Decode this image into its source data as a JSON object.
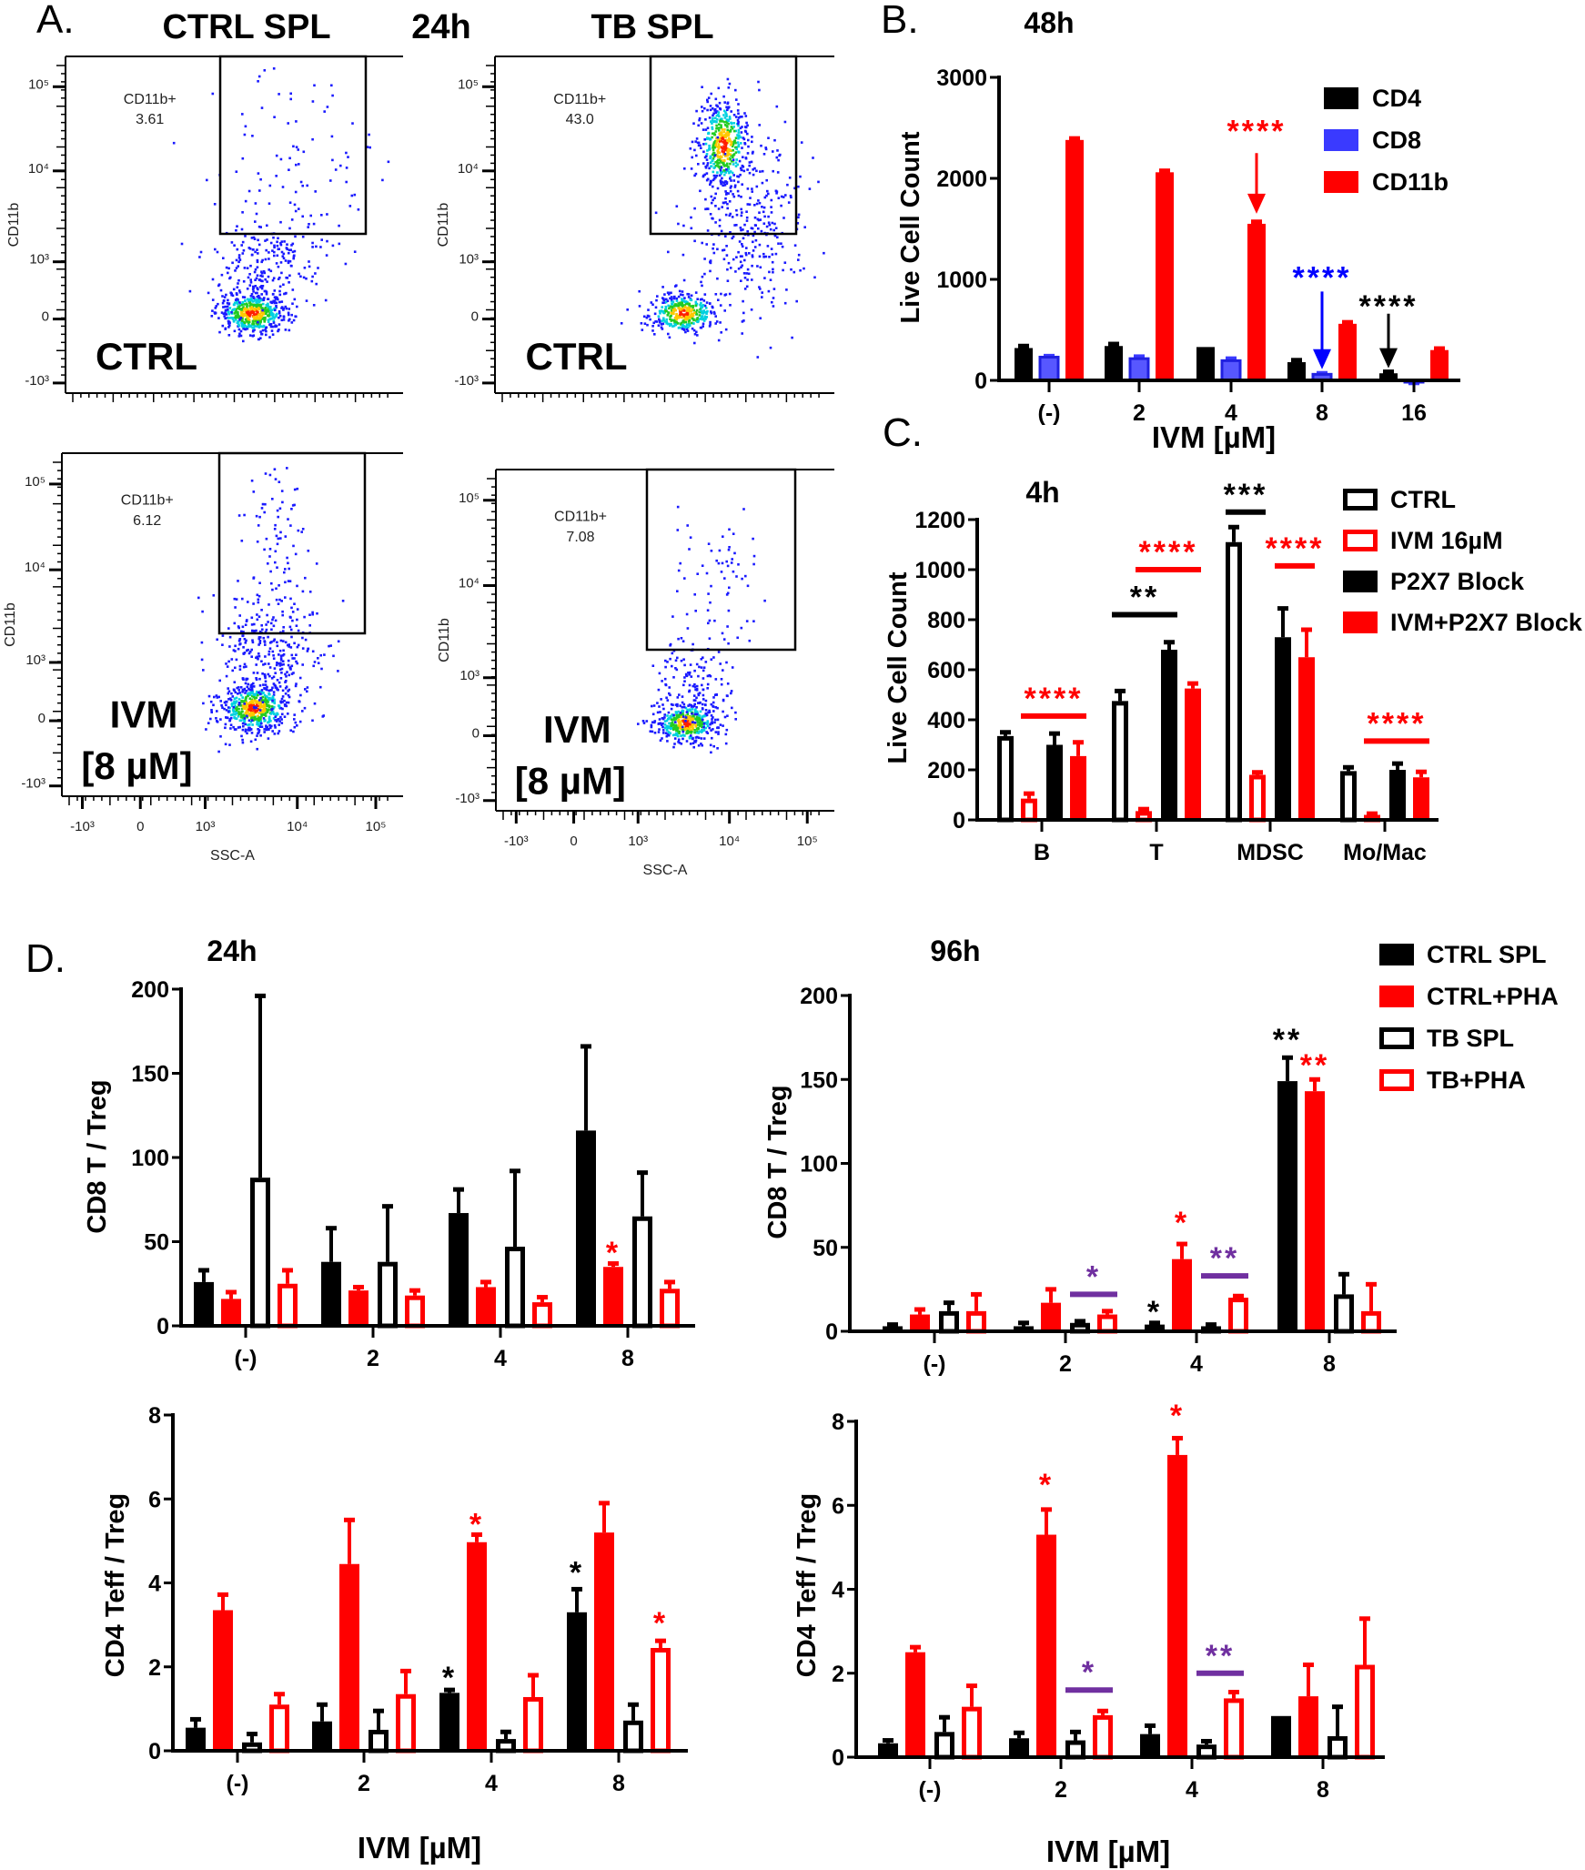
{
  "panel_labels": {
    "A": "A.",
    "B": "B.",
    "C": "C.",
    "D": "D."
  },
  "panel_a": {
    "column_titles": [
      "CTRL SPL",
      "24h",
      "TB SPL"
    ],
    "y_axis_title": "CD11b",
    "x_axis_title": "SSC-A",
    "y_ticks": [
      "10⁵",
      "10⁴",
      "10³",
      "0",
      "-10³"
    ],
    "x_ticks": [
      "-10³",
      "0",
      "10³",
      "10⁴",
      "10⁵"
    ],
    "plots": [
      {
        "sample": "CTRL SPL",
        "condition": "CTRL",
        "condition_line2": "",
        "gate_label": "CD11b+",
        "gate_percent": "3.61"
      },
      {
        "sample": "TB SPL",
        "condition": "CTRL",
        "condition_line2": "",
        "gate_label": "CD11b+",
        "gate_percent": "43.0"
      },
      {
        "sample": "CTRL SPL",
        "condition": "IVM",
        "condition_line2": "[8 µM]",
        "gate_label": "CD11b+",
        "gate_percent": "6.12"
      },
      {
        "sample": "TB SPL",
        "condition": "IVM",
        "condition_line2": "[8 µM]",
        "gate_label": "CD11b+",
        "gate_percent": "7.08"
      }
    ]
  },
  "chart_data": [
    {
      "id": "B",
      "type": "bar",
      "title": "48h",
      "xlabel": "IVM [µM]",
      "ylabel": "Live Cell Count",
      "categories": [
        "(-)",
        "2",
        "4",
        "8",
        "16"
      ],
      "ylim": [
        0,
        3000
      ],
      "yticks": [
        0,
        1000,
        2000,
        3000
      ],
      "ytick_labels": [
        "0",
        "1000",
        "2000",
        "3000"
      ],
      "legend_position": "top-right",
      "series": [
        {
          "name": "CD4",
          "color": "#000000",
          "style": "solid",
          "values": [
            320,
            340,
            330,
            180,
            70
          ],
          "errors": [
            20,
            20,
            0,
            20,
            15
          ]
        },
        {
          "name": "CD8",
          "color": "#3a3aff",
          "style": "solid",
          "values": [
            230,
            215,
            195,
            60,
            -15
          ],
          "errors": [
            10,
            20,
            20,
            10,
            10
          ]
        },
        {
          "name": "CD11b",
          "color": "#ff0000",
          "style": "solid",
          "values": [
            2380,
            2060,
            1550,
            560,
            300
          ],
          "errors": [
            15,
            15,
            20,
            15,
            15
          ]
        }
      ],
      "annotations": [
        {
          "text": "****",
          "color": "#ff0000",
          "group": 2,
          "series": 2,
          "level": 2490,
          "arrow": [
            2250,
            1650
          ]
        },
        {
          "text": "****",
          "color": "#0000ff",
          "group": 3,
          "series": 1,
          "level": 1040,
          "arrow": [
            880,
            110
          ]
        },
        {
          "text": "****",
          "color": "#000000",
          "group": 4,
          "series": 0,
          "level": 755,
          "arrow": [
            660,
            120
          ]
        }
      ]
    },
    {
      "id": "C",
      "type": "bar",
      "title": "4h",
      "xlabel": "",
      "ylabel": "Live Cell Count",
      "categories": [
        "B",
        "T",
        "MDSC",
        "Mo/Mac"
      ],
      "ylim": [
        0,
        1200
      ],
      "yticks": [
        0,
        200,
        400,
        600,
        800,
        1000,
        1200
      ],
      "ytick_labels": [
        "0",
        "200",
        "400",
        "600",
        "800",
        "1000",
        "1200"
      ],
      "legend_position": "top-right",
      "series": [
        {
          "name": "CTRL",
          "color": "#000000",
          "style": "hollow",
          "values": [
            335,
            475,
            1110,
            195
          ],
          "errors": [
            15,
            40,
            60,
            15
          ]
        },
        {
          "name": "IVM 16µM",
          "color": "#ff0000",
          "style": "hollow",
          "values": [
            85,
            35,
            180,
            20
          ],
          "errors": [
            20,
            8,
            10,
            5
          ]
        },
        {
          "name": "P2X7 Block",
          "color": "#000000",
          "style": "solid",
          "values": [
            300,
            680,
            730,
            200
          ],
          "errors": [
            45,
            30,
            115,
            25
          ]
        },
        {
          "name": "IVM+P2X7 Block",
          "color": "#ff0000",
          "style": "solid",
          "values": [
            255,
            525,
            650,
            170
          ],
          "errors": [
            55,
            20,
            110,
            22
          ]
        }
      ],
      "annotations": [
        {
          "text": "****",
          "color": "#ff0000",
          "group": 0,
          "span": [
            1,
            3
          ],
          "level": 415
        },
        {
          "text": "**",
          "color": "#000000",
          "group": 1,
          "span": [
            0,
            2
          ],
          "level": 820
        },
        {
          "text": "****",
          "color": "#ff0000",
          "group": 1,
          "span": [
            1,
            3
          ],
          "level": 1000
        },
        {
          "text": "***",
          "color": "#000000",
          "group": 2,
          "span": [
            0,
            1
          ],
          "level": 1230
        },
        {
          "text": "****",
          "color": "#ff0000",
          "group": 2,
          "span": [
            2,
            3
          ],
          "level": 1015
        },
        {
          "text": "****",
          "color": "#ff0000",
          "group": 3,
          "span": [
            1,
            3
          ],
          "level": 315
        }
      ]
    },
    {
      "id": "D-24h-CD8",
      "type": "bar",
      "title": "24h",
      "xlabel": "",
      "ylabel": "CD8 T / Treg",
      "categories": [
        "(-)",
        "2",
        "4",
        "8"
      ],
      "ylim": [
        0,
        200
      ],
      "yticks": [
        0,
        50,
        100,
        150,
        200
      ],
      "ytick_labels": [
        "0",
        "50",
        "100",
        "150",
        "200"
      ],
      "series": [
        {
          "color": "#000000",
          "style": "solid",
          "values": [
            26,
            38,
            67,
            116
          ],
          "errors": [
            7,
            20,
            14,
            50
          ]
        },
        {
          "color": "#ff0000",
          "style": "solid",
          "values": [
            16,
            21,
            23,
            35
          ],
          "errors": [
            4,
            2,
            3,
            2
          ]
        },
        {
          "color": "#000000",
          "style": "hollow",
          "values": [
            88,
            38,
            47,
            65
          ],
          "errors": [
            108,
            33,
            45,
            26
          ]
        },
        {
          "color": "#ff0000",
          "style": "hollow",
          "values": [
            25,
            18,
            14,
            22
          ],
          "errors": [
            8,
            3,
            3,
            4
          ]
        }
      ],
      "annotations": [
        {
          "text": "*",
          "color": "#ff0000",
          "group": 3,
          "series": 1,
          "level": 45
        }
      ]
    },
    {
      "id": "D-96h-CD8",
      "type": "bar",
      "title": "96h",
      "xlabel": "",
      "ylabel": "CD8 T / Treg",
      "categories": [
        "(-)",
        "2",
        "4",
        "8"
      ],
      "ylim": [
        0,
        200
      ],
      "yticks": [
        0,
        50,
        100,
        150,
        200
      ],
      "ytick_labels": [
        "0",
        "50",
        "100",
        "150",
        "200"
      ],
      "legend_position": "top-right",
      "series": [
        {
          "name": "CTRL SPL",
          "color": "#000000",
          "style": "solid",
          "values": [
            3,
            3,
            4,
            149
          ],
          "errors": [
            1,
            2,
            1,
            14
          ]
        },
        {
          "name": "CTRL+PHA",
          "color": "#ff0000",
          "style": "solid",
          "values": [
            10,
            17,
            43,
            143
          ],
          "errors": [
            3,
            8,
            9,
            7
          ]
        },
        {
          "name": "TB SPL",
          "color": "#000000",
          "style": "hollow",
          "values": [
            12,
            5,
            3,
            22
          ],
          "errors": [
            5,
            1,
            1,
            12
          ]
        },
        {
          "name": "TB+PHA",
          "color": "#ff0000",
          "style": "hollow",
          "values": [
            12,
            10,
            20,
            12
          ],
          "errors": [
            10,
            2,
            1,
            16
          ]
        }
      ],
      "annotations": [
        {
          "text": "*",
          "color": "#7030a0",
          "group": 1,
          "span": [
            2,
            3
          ],
          "level": 22
        },
        {
          "text": "**",
          "color": "#7030a0",
          "group": 2,
          "span": [
            2,
            3
          ],
          "level": 33
        },
        {
          "text": "*",
          "color": "#000000",
          "group": 2,
          "series": 0,
          "level": 13
        },
        {
          "text": "*",
          "color": "#ff0000",
          "group": 2,
          "series": 1,
          "level": 66
        },
        {
          "text": "**",
          "color": "#000000",
          "group": 3,
          "series": 0,
          "level": 175
        },
        {
          "text": "**",
          "color": "#ff0000",
          "group": 3,
          "series": 1,
          "level": 160
        }
      ]
    },
    {
      "id": "D-24h-CD4",
      "type": "bar",
      "title": "",
      "xlabel": "IVM [µM]",
      "ylabel": "CD4 Teff / Treg",
      "categories": [
        "(-)",
        "2",
        "4",
        "8"
      ],
      "ylim": [
        0,
        8
      ],
      "yticks": [
        0,
        2,
        4,
        6,
        8
      ],
      "ytick_labels": [
        "0",
        "2",
        "4",
        "6",
        "8"
      ],
      "series": [
        {
          "color": "#000000",
          "style": "solid",
          "values": [
            0.55,
            0.7,
            1.38,
            3.3
          ],
          "errors": [
            0.2,
            0.4,
            0.07,
            0.55
          ]
        },
        {
          "color": "#ff0000",
          "style": "solid",
          "values": [
            3.35,
            4.45,
            4.97,
            5.2
          ],
          "errors": [
            0.37,
            1.05,
            0.18,
            0.7
          ]
        },
        {
          "color": "#000000",
          "style": "hollow",
          "values": [
            0.2,
            0.5,
            0.28,
            0.72
          ],
          "errors": [
            0.2,
            0.45,
            0.17,
            0.38
          ]
        },
        {
          "color": "#ff0000",
          "style": "hollow",
          "values": [
            1.1,
            1.35,
            1.28,
            2.45
          ],
          "errors": [
            0.25,
            0.55,
            0.52,
            0.17
          ]
        }
      ],
      "annotations": [
        {
          "text": "*",
          "color": "#000000",
          "group": 2,
          "series": 0,
          "level": 1.8
        },
        {
          "text": "*",
          "color": "#ff0000",
          "group": 2,
          "series": 1,
          "level": 5.45
        },
        {
          "text": "*",
          "color": "#000000",
          "group": 3,
          "series": 0,
          "level": 4.3
        },
        {
          "text": "*",
          "color": "#ff0000",
          "group": 3,
          "series": 3,
          "level": 3.1
        }
      ]
    },
    {
      "id": "D-96h-CD4",
      "type": "bar",
      "title": "",
      "xlabel": "IVM [µM]",
      "ylabel": "CD4 Teff / Treg",
      "categories": [
        "(-)",
        "2",
        "4",
        "8"
      ],
      "ylim": [
        0,
        8
      ],
      "yticks": [
        0,
        2,
        4,
        6,
        8
      ],
      "ytick_labels": [
        "0",
        "2",
        "4",
        "6",
        "8"
      ],
      "series": [
        {
          "color": "#000000",
          "style": "solid",
          "values": [
            0.33,
            0.45,
            0.55,
            0.98
          ],
          "errors": [
            0.07,
            0.13,
            0.2,
            0
          ]
        },
        {
          "color": "#ff0000",
          "style": "solid",
          "values": [
            2.5,
            5.3,
            7.2,
            1.45
          ],
          "errors": [
            0.12,
            0.6,
            0.4,
            0.75
          ]
        },
        {
          "color": "#000000",
          "style": "hollow",
          "values": [
            0.6,
            0.4,
            0.3,
            0.5
          ],
          "errors": [
            0.35,
            0.2,
            0.08,
            0.7
          ]
        },
        {
          "color": "#ff0000",
          "style": "hollow",
          "values": [
            1.2,
            1.0,
            1.4,
            2.2
          ],
          "errors": [
            0.5,
            0.1,
            0.15,
            1.1
          ]
        }
      ],
      "annotations": [
        {
          "text": "*",
          "color": "#ff0000",
          "group": 1,
          "series": 1,
          "level": 6.55
        },
        {
          "text": "*",
          "color": "#7030a0",
          "group": 1,
          "span": [
            2,
            3
          ],
          "level": 1.6
        },
        {
          "text": "*",
          "color": "#ff0000",
          "group": 2,
          "series": 1,
          "level": 8.2
        },
        {
          "text": "**",
          "color": "#7030a0",
          "group": 2,
          "span": [
            2,
            3
          ],
          "level": 2.0
        }
      ]
    }
  ]
}
